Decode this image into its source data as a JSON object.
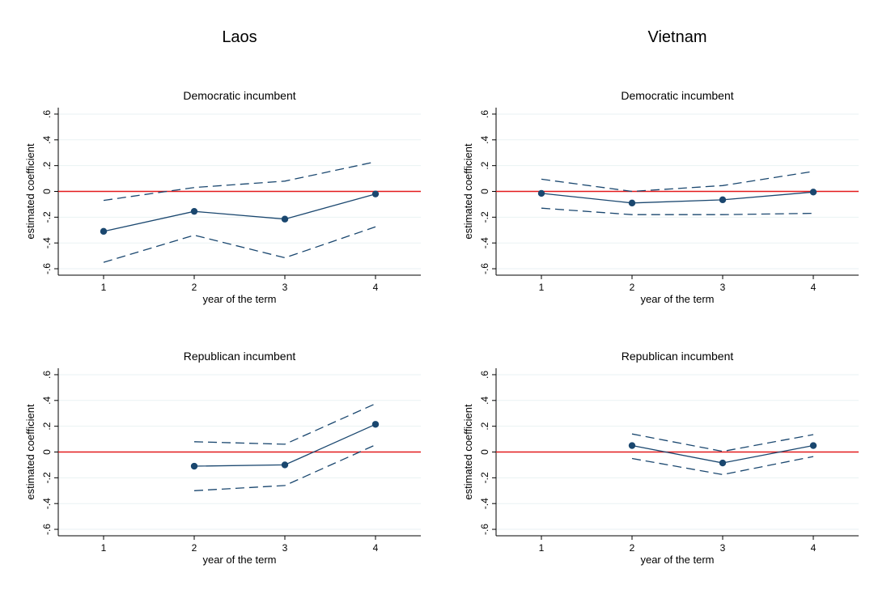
{
  "colors": {
    "series": "#1a476f",
    "zero_line": "#e31a1c",
    "grid": "#eaf2f3",
    "axis": "#000000"
  },
  "columns": [
    "Laos",
    "Vietnam"
  ],
  "chart_data": [
    {
      "type": "line",
      "column": "Laos",
      "title": "Democratic incumbent",
      "xlabel": "year of the term",
      "ylabel": "estimated coefficient",
      "xlim": [
        0.5,
        4.5
      ],
      "ylim": [
        -0.65,
        0.65
      ],
      "xticks": [
        "1",
        "2",
        "3",
        "4"
      ],
      "yticks": [
        "-.6",
        "-.4",
        "-.2",
        "0",
        ".2",
        ".4",
        ".6"
      ],
      "grid": true,
      "x": [
        1,
        2,
        3,
        4
      ],
      "estimate": [
        -0.31,
        -0.155,
        -0.215,
        -0.02
      ],
      "upper": [
        -0.07,
        0.03,
        0.08,
        0.23
      ],
      "lower": [
        -0.55,
        -0.34,
        -0.515,
        -0.275
      ]
    },
    {
      "type": "line",
      "column": "Vietnam",
      "title": "Democratic incumbent",
      "xlabel": "year of the term",
      "ylabel": "estimated coefficient",
      "xlim": [
        0.5,
        4.5
      ],
      "ylim": [
        -0.65,
        0.65
      ],
      "xticks": [
        "1",
        "2",
        "3",
        "4"
      ],
      "yticks": [
        "-.6",
        "-.4",
        "-.2",
        "0",
        ".2",
        ".4",
        ".6"
      ],
      "grid": true,
      "x": [
        1,
        2,
        3,
        4
      ],
      "estimate": [
        -0.015,
        -0.09,
        -0.065,
        -0.005
      ],
      "upper": [
        0.095,
        0.0,
        0.045,
        0.155
      ],
      "lower": [
        -0.13,
        -0.18,
        -0.18,
        -0.17
      ]
    },
    {
      "type": "line",
      "column": "Laos",
      "title": "Republican incumbent",
      "xlabel": "year of the term",
      "ylabel": "estimated coefficient",
      "xlim": [
        0.5,
        4.5
      ],
      "ylim": [
        -0.65,
        0.65
      ],
      "xticks": [
        "1",
        "2",
        "3",
        "4"
      ],
      "yticks": [
        "-.6",
        "-.4",
        "-.2",
        "0",
        ".2",
        ".4",
        ".6"
      ],
      "grid": true,
      "x": [
        2,
        3,
        4
      ],
      "estimate": [
        -0.11,
        -0.1,
        0.215
      ],
      "upper": [
        0.08,
        0.06,
        0.375
      ],
      "lower": [
        -0.3,
        -0.26,
        0.055
      ]
    },
    {
      "type": "line",
      "column": "Vietnam",
      "title": "Republican incumbent",
      "xlabel": "year of the term",
      "ylabel": "estimated coefficient",
      "xlim": [
        0.5,
        4.5
      ],
      "ylim": [
        -0.65,
        0.65
      ],
      "xticks": [
        "1",
        "2",
        "3",
        "4"
      ],
      "yticks": [
        "-.6",
        "-.4",
        "-.2",
        "0",
        ".2",
        ".4",
        ".6"
      ],
      "grid": true,
      "x": [
        2,
        3,
        4
      ],
      "estimate": [
        0.05,
        -0.085,
        0.05
      ],
      "upper": [
        0.14,
        0.005,
        0.135
      ],
      "lower": [
        -0.05,
        -0.175,
        -0.035
      ]
    }
  ]
}
